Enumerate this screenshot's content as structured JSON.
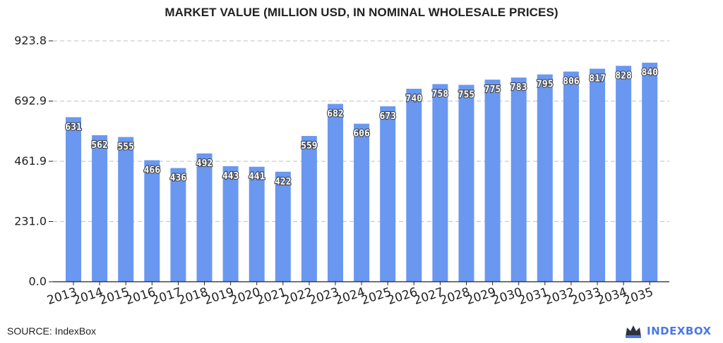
{
  "title": "MARKET VALUE (MILLION USD, IN NOMINAL WHOLESALE PRICES)",
  "source": "SOURCE: IndexBox",
  "brand": {
    "name": "INDEXBOX",
    "icon": "crown-icon",
    "color": "#4a78e8"
  },
  "colors": {
    "bar": "#6a98f0",
    "grid": "#cccccc",
    "axis": "#222222"
  },
  "chart_data": {
    "type": "bar",
    "title": "MARKET VALUE (MILLION USD, IN NOMINAL WHOLESALE PRICES)",
    "xlabel": "",
    "ylabel": "",
    "categories": [
      "2013",
      "2014",
      "2015",
      "2016",
      "2017",
      "2018",
      "2019",
      "2020",
      "2021",
      "2022",
      "2023",
      "2024",
      "2025",
      "2026",
      "2027",
      "2028",
      "2029",
      "2030",
      "2031",
      "2032",
      "2033",
      "2034",
      "2035"
    ],
    "values": [
      631,
      562,
      555,
      466,
      436,
      492,
      443,
      441,
      422,
      559,
      682,
      606,
      673,
      740,
      758,
      755,
      775,
      783,
      795,
      806,
      817,
      828,
      840
    ],
    "data_labels": [
      "631",
      "562",
      "555",
      "466",
      "436",
      "492",
      "443",
      "441",
      "422",
      "559",
      "682",
      "606",
      "673",
      "740",
      "758",
      "755",
      "775",
      "783",
      "795",
      "806",
      "817",
      "828",
      "840"
    ],
    "yticks": [
      0.0,
      231.0,
      461.9,
      692.9,
      923.8
    ],
    "ytick_labels": [
      "0.0",
      "231.0",
      "461.9",
      "692.9",
      "923.8"
    ],
    "ylim": [
      0,
      923.8
    ],
    "grid": true,
    "legend": "none"
  }
}
